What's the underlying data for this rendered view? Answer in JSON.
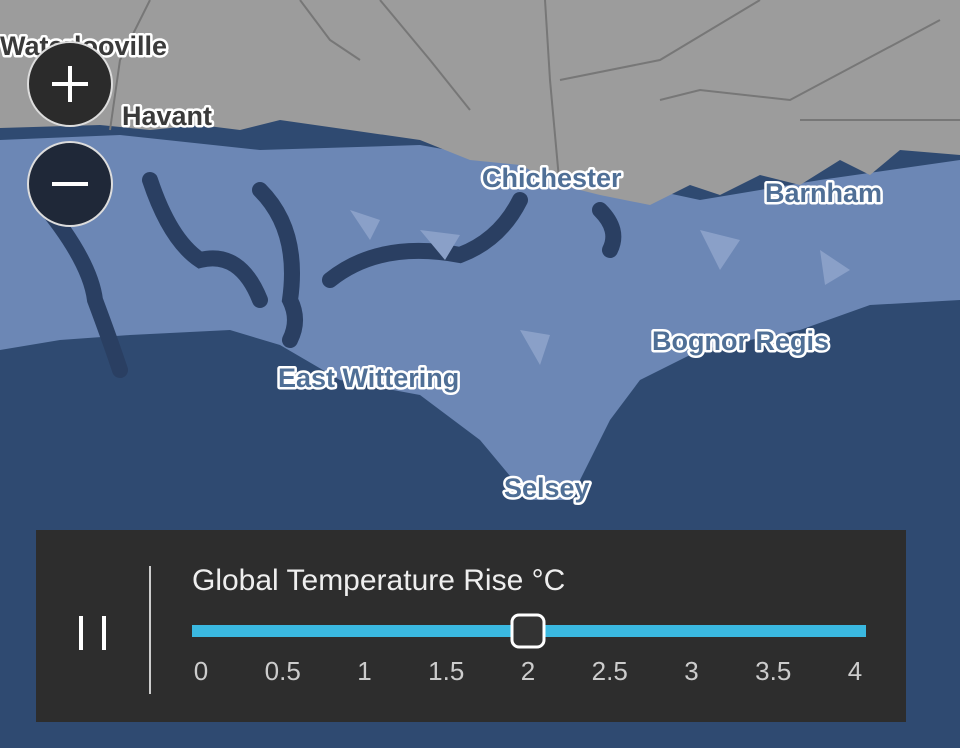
{
  "map": {
    "places": [
      "Waterlooville",
      "Havant",
      "Chichester",
      "Barnham",
      "Bognor Regis",
      "East Wittering",
      "Selsey"
    ]
  },
  "control": {
    "title": "Global Temperature Rise °C",
    "range": [
      0,
      4
    ],
    "ticks": [
      0,
      0.5,
      1,
      1.5,
      2,
      2.5,
      3,
      3.5,
      4
    ],
    "value": 2
  }
}
